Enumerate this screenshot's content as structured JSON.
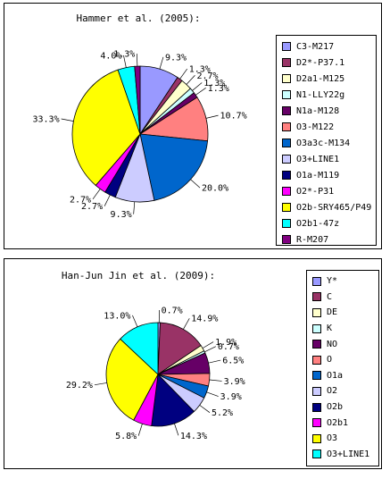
{
  "chart_data": [
    {
      "type": "pie",
      "title": "Hammer et al. (2005):",
      "legend_position": "right",
      "slices": [
        {
          "label": "C3-M217",
          "value": 9.3,
          "value_label": "9.3%",
          "color": "#9999ff"
        },
        {
          "label": "D2*-P37.1",
          "value": 1.3,
          "value_label": "1.3%",
          "color": "#993366"
        },
        {
          "label": "D2a1-M125",
          "value": 2.7,
          "value_label": "2.7%",
          "color": "#ffffcc"
        },
        {
          "label": "N1-LLY22g",
          "value": 1.3,
          "value_label": "1.3%",
          "color": "#ccffff"
        },
        {
          "label": "N1a-M128",
          "value": 1.3,
          "value_label": "1.3%",
          "color": "#660066"
        },
        {
          "label": "O3-M122",
          "value": 10.7,
          "value_label": "10.7%",
          "color": "#ff8080"
        },
        {
          "label": "O3a3c-M134",
          "value": 20.0,
          "value_label": "20.0%",
          "color": "#0066cc"
        },
        {
          "label": "O3+LINE1",
          "value": 9.3,
          "value_label": "9.3%",
          "color": "#ccccff"
        },
        {
          "label": "O1a-M119",
          "value": 2.7,
          "value_label": "2.7%",
          "color": "#000080"
        },
        {
          "label": "O2*-P31",
          "value": 2.7,
          "value_label": "2.7%",
          "color": "#ff00ff"
        },
        {
          "label": "O2b-SRY465/P49",
          "value": 33.3,
          "value_label": "33.3%",
          "color": "#ffff00"
        },
        {
          "label": "O2b1-47z",
          "value": 4.0,
          "value_label": "4.0%",
          "color": "#00ffff"
        },
        {
          "label": "R-M207",
          "value": 1.3,
          "value_label": "1.3%",
          "color": "#800080"
        }
      ]
    },
    {
      "type": "pie",
      "title": "Han-Jun Jin et al. (2009):",
      "legend_position": "right",
      "slices": [
        {
          "label": "Y*",
          "value": 0.7,
          "value_label": "0.7%",
          "color": "#9999ff"
        },
        {
          "label": "C",
          "value": 14.9,
          "value_label": "14.9%",
          "color": "#993366"
        },
        {
          "label": "DE",
          "value": 1.9,
          "value_label": "1.9%",
          "color": "#ffffcc"
        },
        {
          "label": "K",
          "value": 0.7,
          "value_label": "0.7%",
          "color": "#ccffff"
        },
        {
          "label": "NO",
          "value": 6.5,
          "value_label": "6.5%",
          "color": "#660066"
        },
        {
          "label": "O",
          "value": 3.9,
          "value_label": "3.9%",
          "color": "#ff8080"
        },
        {
          "label": "O1a",
          "value": 3.9,
          "value_label": "3.9%",
          "color": "#0066cc"
        },
        {
          "label": "O2",
          "value": 5.2,
          "value_label": "5.2%",
          "color": "#ccccff"
        },
        {
          "label": "O2b",
          "value": 14.3,
          "value_label": "14.3%",
          "color": "#000080"
        },
        {
          "label": "O2b1",
          "value": 5.8,
          "value_label": "5.8%",
          "color": "#ff00ff"
        },
        {
          "label": "O3",
          "value": 29.2,
          "value_label": "29.2%",
          "color": "#ffff00"
        },
        {
          "label": "O3+LINE1",
          "value": 13.0,
          "value_label": "13.0%",
          "color": "#00ffff"
        }
      ]
    }
  ]
}
